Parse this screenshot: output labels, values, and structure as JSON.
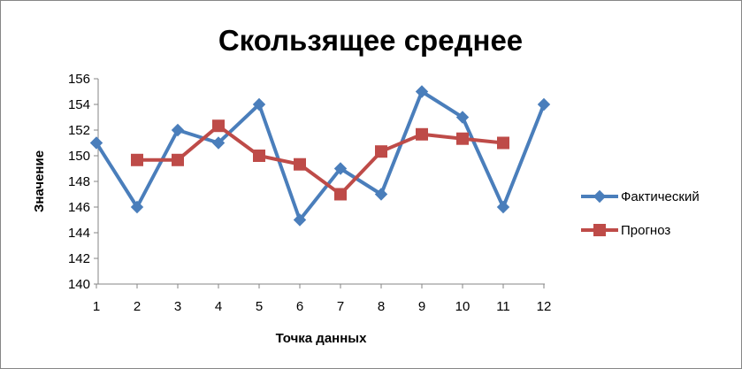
{
  "chart_data": {
    "type": "line",
    "title": "Скользящее среднее",
    "xlabel": "Точка данных",
    "ylabel": "Значение",
    "categories": [
      "1",
      "2",
      "3",
      "4",
      "5",
      "6",
      "7",
      "8",
      "9",
      "10",
      "11",
      "12"
    ],
    "ylim": [
      140,
      156
    ],
    "yticks": [
      "140",
      "142",
      "144",
      "146",
      "148",
      "150",
      "152",
      "154",
      "156"
    ],
    "legend_position": "right",
    "grid": false,
    "series": [
      {
        "name": "Фактический",
        "color": "#4a7ebb",
        "marker": "diamond",
        "values": [
          151,
          146,
          152,
          151,
          154,
          145,
          149,
          147,
          155,
          153,
          146,
          154
        ]
      },
      {
        "name": "Прогноз",
        "color": "#be4b48",
        "marker": "square",
        "values": [
          null,
          149.67,
          149.67,
          152.33,
          150,
          149.33,
          147,
          150.33,
          151.67,
          151.33,
          151,
          null
        ]
      }
    ]
  }
}
